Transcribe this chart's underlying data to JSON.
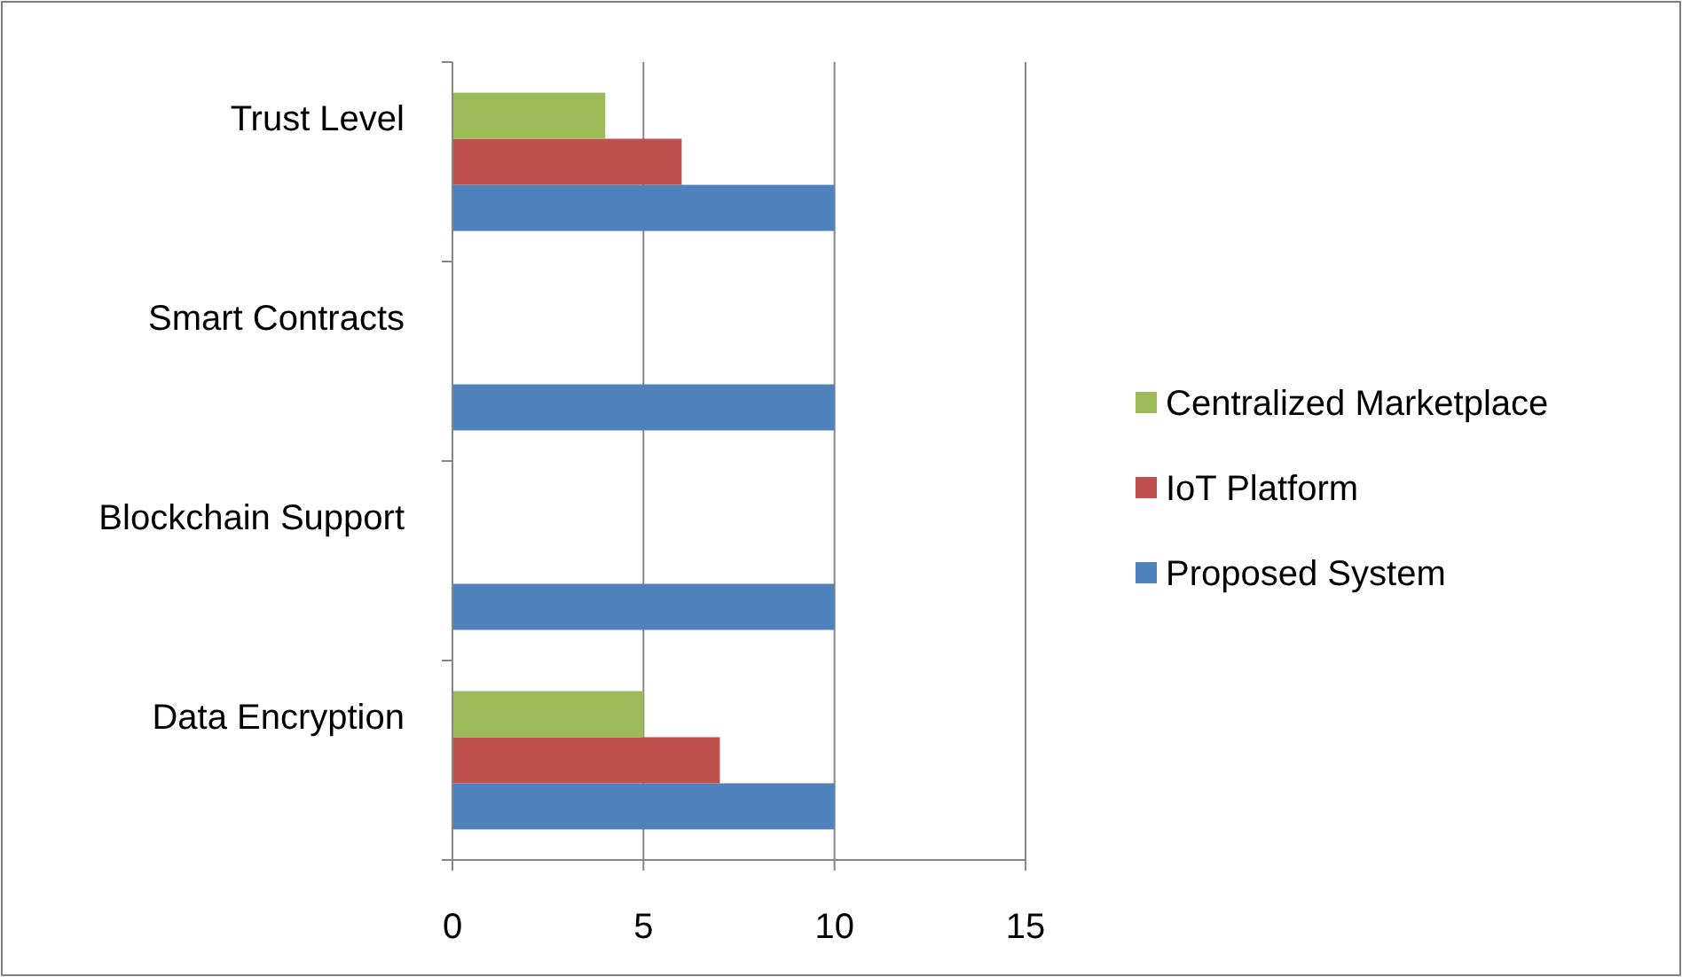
{
  "chart_data": {
    "type": "bar",
    "orientation": "horizontal",
    "categories": [
      "Trust Level",
      "Smart Contracts",
      "Blockchain Support",
      "Data Encryption"
    ],
    "series": [
      {
        "name": "Proposed System",
        "color": "#4f81bd",
        "values": [
          10,
          10,
          10,
          10
        ]
      },
      {
        "name": "IoT Platform",
        "color": "#c0504d",
        "values": [
          6,
          0,
          0,
          7
        ]
      },
      {
        "name": "Centralized Marketplace",
        "color": "#9bbb59",
        "values": [
          4,
          0,
          0,
          5
        ]
      }
    ],
    "xlim": [
      0,
      15
    ],
    "xticks": [
      0,
      5,
      10,
      15
    ],
    "grid": "x",
    "legend": "right"
  }
}
